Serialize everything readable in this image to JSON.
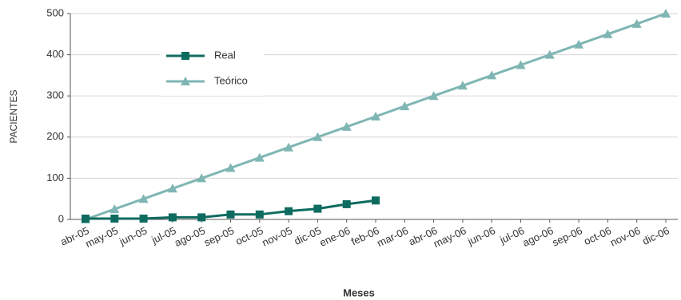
{
  "chart_data": {
    "type": "line",
    "xlabel": "Meses",
    "ylabel": "PACIENTES",
    "categories": [
      "abr-05",
      "may-05",
      "jun-05",
      "jul-05",
      "ago-05",
      "sep-05",
      "oct-05",
      "nov-05",
      "dic-05",
      "ene-06",
      "feb-06",
      "mar-06",
      "abr-06",
      "may-06",
      "jun-06",
      "jul-06",
      "ago-06",
      "sep-06",
      "oct-06",
      "nov-06",
      "dic-06"
    ],
    "series": [
      {
        "name": "Real",
        "color": "#0e6b5f",
        "marker": "square",
        "values": [
          2,
          2,
          2,
          5,
          5,
          12,
          12,
          20,
          26,
          37,
          46,
          null,
          null,
          null,
          null,
          null,
          null,
          null,
          null,
          null,
          null
        ]
      },
      {
        "name": "Teórico",
        "color": "#7fb6b3",
        "marker": "triangle",
        "values": [
          0,
          25,
          50,
          75,
          100,
          125,
          150,
          175,
          200,
          225,
          250,
          275,
          300,
          325,
          350,
          375,
          400,
          425,
          450,
          475,
          500
        ]
      }
    ],
    "ylim": [
      0,
      500
    ],
    "yticks": [
      0,
      100,
      200,
      300,
      400,
      500
    ],
    "grid": true,
    "legend": "upper left"
  }
}
